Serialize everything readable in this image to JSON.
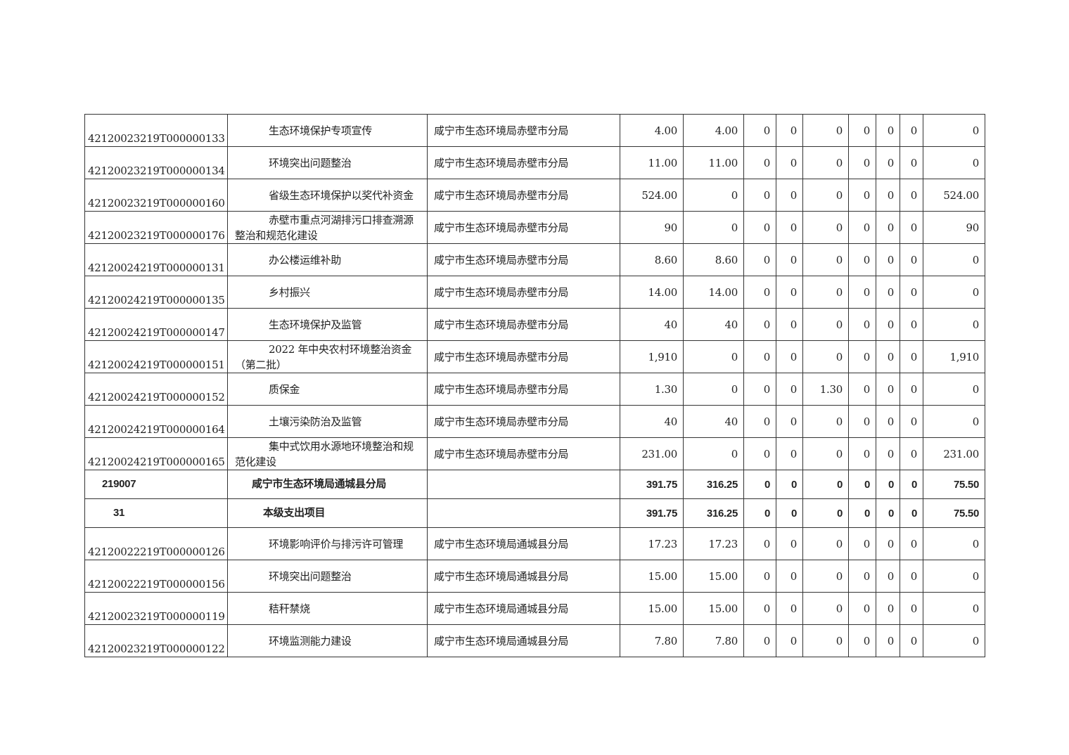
{
  "table": {
    "rows": [
      {
        "type": "item",
        "code": "42120023219T000000133",
        "name": "生态环境保护专项宣传",
        "dept": "咸宁市生态环境局赤壁市分局",
        "values": [
          "4.00",
          "4.00",
          "0",
          "0",
          "0",
          "0",
          "0",
          "0",
          "0"
        ]
      },
      {
        "type": "item",
        "code": "42120023219T000000134",
        "name": "环境突出问题整治",
        "dept": "咸宁市生态环境局赤壁市分局",
        "values": [
          "11.00",
          "11.00",
          "0",
          "0",
          "0",
          "0",
          "0",
          "0",
          "0"
        ]
      },
      {
        "type": "item",
        "code": "42120023219T000000160",
        "name": "省级生态环境保护以奖代补资金",
        "dept": "咸宁市生态环境局赤壁市分局",
        "values": [
          "524.00",
          "0",
          "0",
          "0",
          "0",
          "0",
          "0",
          "0",
          "524.00"
        ]
      },
      {
        "type": "item",
        "code": "42120023219T000000176",
        "name": "赤壁市重点河湖排污口排查溯源整治和规范化建设",
        "dept": "咸宁市生态环境局赤壁市分局",
        "values": [
          "90",
          "0",
          "0",
          "0",
          "0",
          "0",
          "0",
          "0",
          "90"
        ]
      },
      {
        "type": "item",
        "code": "42120024219T000000131",
        "name": "办公楼运维补助",
        "dept": "咸宁市生态环境局赤壁市分局",
        "values": [
          "8.60",
          "8.60",
          "0",
          "0",
          "0",
          "0",
          "0",
          "0",
          "0"
        ]
      },
      {
        "type": "item",
        "code": "42120024219T000000135",
        "name": "乡村振兴",
        "dept": "咸宁市生态环境局赤壁市分局",
        "values": [
          "14.00",
          "14.00",
          "0",
          "0",
          "0",
          "0",
          "0",
          "0",
          "0"
        ]
      },
      {
        "type": "item",
        "code": "42120024219T000000147",
        "name": "生态环境保护及监管",
        "dept": "咸宁市生态环境局赤壁市分局",
        "values": [
          "40",
          "40",
          "0",
          "0",
          "0",
          "0",
          "0",
          "0",
          "0"
        ]
      },
      {
        "type": "item",
        "code": "42120024219T000000151",
        "name": "2022 年中央农村环境整治资金（第二批）",
        "dept": "咸宁市生态环境局赤壁市分局",
        "values": [
          "1,910",
          "0",
          "0",
          "0",
          "0",
          "0",
          "0",
          "0",
          "1,910"
        ]
      },
      {
        "type": "item",
        "code": "42120024219T000000152",
        "name": "质保金",
        "dept": "咸宁市生态环境局赤壁市分局",
        "values": [
          "1.30",
          "0",
          "0",
          "0",
          "1.30",
          "0",
          "0",
          "0",
          "0"
        ]
      },
      {
        "type": "item",
        "code": "42120024219T000000164",
        "name": "土壤污染防治及监管",
        "dept": "咸宁市生态环境局赤壁市分局",
        "values": [
          "40",
          "40",
          "0",
          "0",
          "0",
          "0",
          "0",
          "0",
          "0"
        ]
      },
      {
        "type": "item",
        "code": "42120024219T000000165",
        "name": "集中式饮用水源地环境整治和规范化建设",
        "dept": "咸宁市生态环境局赤壁市分局",
        "values": [
          "231.00",
          "0",
          "0",
          "0",
          "0",
          "0",
          "0",
          "0",
          "231.00"
        ]
      },
      {
        "type": "bold",
        "code": "219007",
        "name": "咸宁市生态环境局通城县分局",
        "dept": "",
        "values": [
          "391.75",
          "316.25",
          "0",
          "0",
          "0",
          "0",
          "0",
          "0",
          "75.50"
        ]
      },
      {
        "type": "bold sub",
        "code": "31",
        "name": "本级支出项目",
        "dept": "",
        "values": [
          "391.75",
          "316.25",
          "0",
          "0",
          "0",
          "0",
          "0",
          "0",
          "75.50"
        ]
      },
      {
        "type": "item",
        "code": "42120022219T000000126",
        "name": "环境影响评价与排污许可管理",
        "dept": "咸宁市生态环境局通城县分局",
        "values": [
          "17.23",
          "17.23",
          "0",
          "0",
          "0",
          "0",
          "0",
          "0",
          "0"
        ]
      },
      {
        "type": "item",
        "code": "42120022219T000000156",
        "name": "环境突出问题整治",
        "dept": "咸宁市生态环境局通城县分局",
        "values": [
          "15.00",
          "15.00",
          "0",
          "0",
          "0",
          "0",
          "0",
          "0",
          "0"
        ]
      },
      {
        "type": "item",
        "code": "42120023219T000000119",
        "name": "秸秆禁烧",
        "dept": "咸宁市生态环境局通城县分局",
        "values": [
          "15.00",
          "15.00",
          "0",
          "0",
          "0",
          "0",
          "0",
          "0",
          "0"
        ]
      },
      {
        "type": "item",
        "code": "42120023219T000000122",
        "name": "环境监测能力建设",
        "dept": "咸宁市生态环境局通城县分局",
        "values": [
          "7.80",
          "7.80",
          "0",
          "0",
          "0",
          "0",
          "0",
          "0",
          "0"
        ]
      }
    ]
  }
}
